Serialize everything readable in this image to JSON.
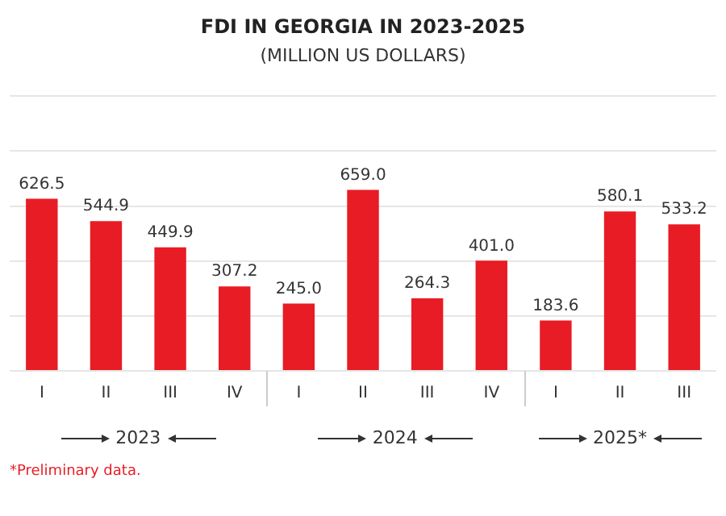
{
  "chart_data": {
    "type": "bar",
    "title": "FDI IN GEORGIA IN 2023-2025",
    "subtitle": "(MILLION US DOLLARS)",
    "categories": [
      "I",
      "II",
      "III",
      "IV",
      "I",
      "II",
      "III",
      "IV",
      "I",
      "II",
      "III"
    ],
    "values": [
      626.5,
      544.9,
      449.9,
      307.2,
      245.0,
      659.0,
      264.3,
      401.0,
      183.6,
      580.1,
      533.2
    ],
    "value_labels": [
      "626.5",
      "544.9",
      "449.9",
      "307.2",
      "245.0",
      "659.0",
      "264.3",
      "401.0",
      "183.6",
      "580.1",
      "533.2"
    ],
    "color": "#e81c24",
    "ylim": [
      0,
      1000
    ],
    "yticks": [
      {
        "value": 0,
        "label": null
      },
      {
        "value": 200,
        "label": null
      },
      {
        "value": 400,
        "label": null
      },
      {
        "value": 600,
        "label": null
      },
      {
        "value": 800,
        "label": null
      },
      {
        "value": 1000,
        "label": null
      }
    ],
    "grid": "y",
    "tick_labels": "x",
    "annotations": [
      "2023",
      "2024",
      "2025*",
      "*Preliminary data."
    ]
  }
}
